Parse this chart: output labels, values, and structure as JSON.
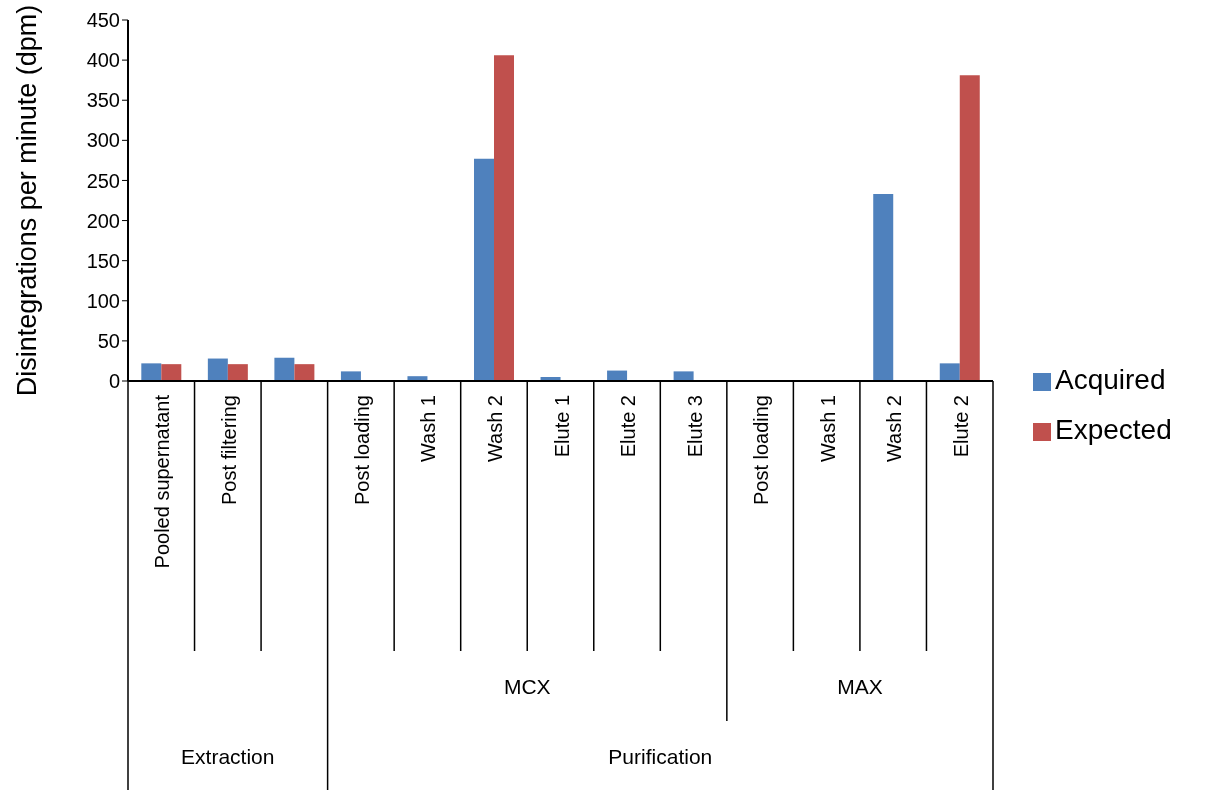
{
  "chart_data": {
    "type": "bar",
    "ylabel": "Disintegrations per minute (dpm)",
    "categories": [
      "Pooled supernatant",
      "Post filtering",
      null,
      "Post loading",
      "Wash 1",
      "Wash 2",
      "Elute 1",
      "Elute 2",
      "Elute 3",
      "Post loading",
      "Wash 1",
      "Wash 2",
      "Elute 2"
    ],
    "series": [
      {
        "name": "Acquired",
        "color": "#4f81bd",
        "values": [
          22,
          28,
          29,
          12,
          6,
          277,
          5,
          13,
          12,
          0,
          0,
          233,
          22
        ]
      },
      {
        "name": "Expected",
        "color": "#c0504d",
        "values": [
          21,
          21,
          21,
          null,
          null,
          406,
          null,
          null,
          null,
          null,
          null,
          null,
          381
        ]
      }
    ],
    "ylim": [
      0,
      450
    ],
    "yticks": [
      0,
      50,
      100,
      150,
      200,
      250,
      300,
      350,
      400,
      450
    ],
    "annotations": [
      "MCX",
      "MAX",
      "Extraction",
      "Purification"
    ],
    "grid": false,
    "legend": "right"
  }
}
